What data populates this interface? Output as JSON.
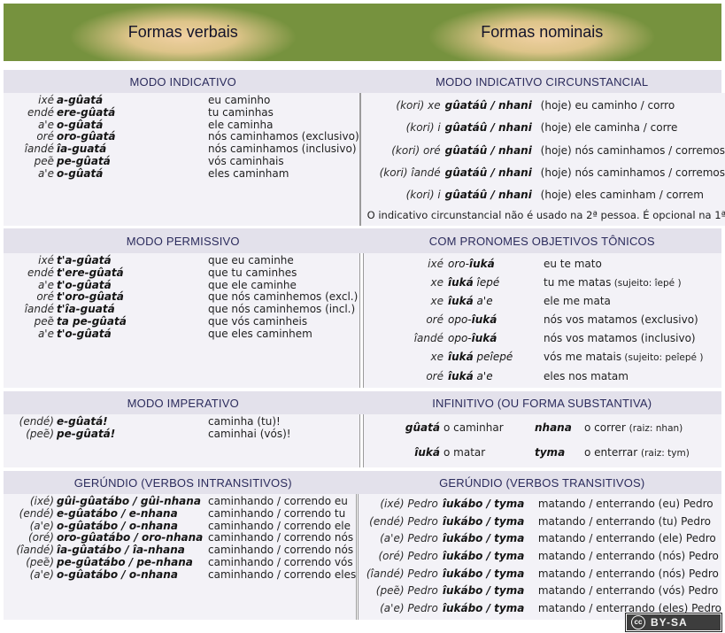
{
  "header": {
    "left_title": "Formas verbais",
    "right_title": "Formas nominais"
  },
  "sections": [
    {
      "left": {
        "title": "MODO INDICATIVO",
        "rows": [
          {
            "p": "ixé",
            "v": "a-gûatá",
            "t": "eu caminho"
          },
          {
            "p": "endé",
            "v": "ere-gûatá",
            "t": "tu caminhas"
          },
          {
            "p": "a'e",
            "v": "o-gûatá",
            "t": "ele caminha"
          },
          {
            "p": "oré",
            "v": "oro-gûatá",
            "t": "nós caminhamos (exclusivo)"
          },
          {
            "p": "îandé",
            "v": "îa-guatá",
            "t": "nós caminhamos (inclusivo)"
          },
          {
            "p": "peẽ",
            "v": "pe-gûatá",
            "t": "vós caminhais"
          },
          {
            "p": "a'e",
            "v": "o-gûatá",
            "t": "eles caminham"
          }
        ]
      },
      "right": {
        "title": "MODO INDICATIVO CIRCUNSTANCIAL",
        "rows": [
          {
            "p": "(kori) xe",
            "v": "gûatáû / nhani",
            "t": "(hoje) eu caminho / corro"
          },
          {
            "p": "(kori) i",
            "v": "gûatáû / nhani",
            "t": "(hoje) ele caminha / corre"
          },
          {
            "p": "(kori) oré",
            "v": "gûatáû / nhani",
            "t": "(hoje) nós caminhamos / corremos"
          },
          {
            "p": "(kori) îandé",
            "v": "gûatáû / nhani",
            "t": "(hoje) nós caminhamos / corremos"
          },
          {
            "p": "(kori) i",
            "v": "gûatáû / nhani",
            "t": "(hoje) eles caminham / correm"
          }
        ],
        "note": "O indicativo circunstancial não é usado na 2ª pessoa. É opcional na 1ª"
      }
    },
    {
      "left": {
        "title": "MODO PERMISSIVO",
        "rows": [
          {
            "p": "ixé",
            "v": "t'a-gûatá",
            "t": "que eu caminhe"
          },
          {
            "p": "endé",
            "v": "t'ere-gûatá",
            "t": "que tu caminhes"
          },
          {
            "p": "a'e",
            "v": "t'o-gûatá",
            "t": "que ele caminhe"
          },
          {
            "p": "oré",
            "v": "t'oro-gûatá",
            "t": "que nós caminhemos (excl.)"
          },
          {
            "p": "îandé",
            "v": "t'îa-guatá",
            "t": "que nós caminhemos (incl.)"
          },
          {
            "p": "peẽ",
            "v": "ta pe-gûatá",
            "t": "que vós caminheis"
          },
          {
            "p": "a'e",
            "v": "t'o-gûatá",
            "t": "que eles caminhem"
          }
        ]
      },
      "right": {
        "title": "COM PRONOMES OBJETIVOS TÔNICOS",
        "rows": [
          {
            "p": "ixé",
            "vpre": "oro-",
            "v": "îuká",
            "t": "eu te mato"
          },
          {
            "p": "xe",
            "v": "îuká",
            "vpost": "îepé",
            "t": "tu me matas",
            "tn": "(sujeito: îepé )"
          },
          {
            "p": "xe",
            "v": "îuká",
            "vpost": "a'e",
            "t": "ele me mata"
          },
          {
            "p": "oré",
            "vpre": "opo-",
            "v": "îuká",
            "t": "nós vos matamos (exclusivo)"
          },
          {
            "p": "îandé",
            "vpre": "opo-",
            "v": "îuká",
            "t": "nós vos matamos (inclusivo)"
          },
          {
            "p": "xe",
            "v": "îuká",
            "vpost": "peîepé",
            "t": "vós me matais",
            "tn": "(sujeito: peîepé )"
          },
          {
            "p": "oré",
            "v": "îuká",
            "vpost": "a'e",
            "t": "eles nos matam"
          }
        ]
      }
    },
    {
      "left": {
        "title": "MODO IMPERATIVO",
        "rows": [
          {
            "p": "(endé)",
            "v": "e-gûatá!",
            "t": "caminha (tu)!"
          },
          {
            "p": "(peẽ)",
            "v": "pe-gûatá!",
            "t": "caminhai (vós)!"
          }
        ]
      },
      "right": {
        "title": "INFINITIVO (OU FORMA SUBSTANTIVA)",
        "layout": "pairs",
        "rows": [
          {
            "v1": "gûatá",
            "t1": "o caminhar",
            "v2": "nhana",
            "t2": "o correr",
            "n2": "(raiz: nhan)"
          },
          {
            "v1": "îuká",
            "t1": "o matar",
            "v2": "tyma",
            "t2": "o enterrar",
            "n2": "(raiz: tym)"
          }
        ]
      }
    },
    {
      "left": {
        "title": "GERÚNDIO (VERBOS INTRANSITIVOS)",
        "rows": [
          {
            "p": "(ixé)",
            "v": "gûi-gûatábo / gûi-nhana",
            "t": "caminhando / correndo eu"
          },
          {
            "p": "(endé)",
            "v": "e-gûatábo / e-nhana",
            "t": "caminhando / correndo tu"
          },
          {
            "p": "(a'e)",
            "v": "o-gûatábo / o-nhana",
            "t": "caminhando / correndo ele"
          },
          {
            "p": "(oré)",
            "v": "oro-gûatábo / oro-nhana",
            "t": "caminhando / correndo nós"
          },
          {
            "p": "(îandé)",
            "v": "îa-gûatábo / îa-nhana",
            "t": "caminhando / correndo nós"
          },
          {
            "p": "(peẽ)",
            "v": "pe-gûatábo / pe-nhana",
            "t": "caminhando / correndo vós"
          },
          {
            "p": "(a'e)",
            "v": "o-gûatábo / o-nhana",
            "t": "caminhando / correndo eles"
          }
        ]
      },
      "right": {
        "title": "GERÚNDIO (VERBOS TRANSITIVOS)",
        "rows": [
          {
            "p": "(ixé) Pedro",
            "v": "îukábo / tyma",
            "t": "matando / enterrando (eu) Pedro"
          },
          {
            "p": "(endé) Pedro",
            "v": "îukábo / tyma",
            "t": "matando / enterrando (tu) Pedro"
          },
          {
            "p": "(a'e) Pedro",
            "v": "îukábo / tyma",
            "t": "matando / enterrando (ele) Pedro"
          },
          {
            "p": "(oré) Pedro",
            "v": "îukábo / tyma",
            "t": "matando / enterrando (nós) Pedro"
          },
          {
            "p": "(îandé) Pedro",
            "v": "îukábo / tyma",
            "t": "matando / enterrando (nós) Pedro"
          },
          {
            "p": "(peẽ) Pedro",
            "v": "îukábo / tyma",
            "t": "matando / enterrando (vós) Pedro"
          },
          {
            "p": "(a'e) Pedro",
            "v": "îukábo / tyma",
            "t": "matando / enterrando (eles) Pedro"
          }
        ]
      }
    }
  ],
  "footer": {
    "cc_text": "cc",
    "license_label": "BY-SA"
  },
  "colors": {
    "header_green": "#76923e",
    "header_glow": "#ecc99b",
    "band_bg": "#e3e1eb",
    "band_text": "#2b2b5c",
    "content_bg": "#f3f2f7",
    "divider": "#9b9b9b"
  }
}
